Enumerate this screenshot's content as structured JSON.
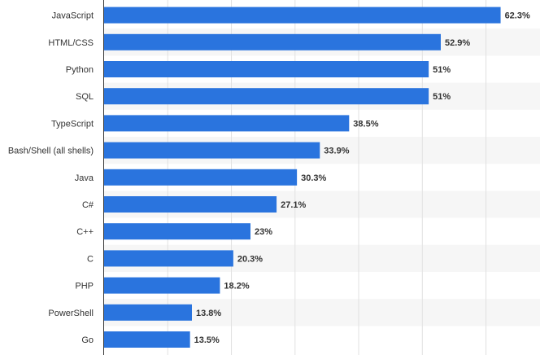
{
  "chart_data": {
    "type": "bar",
    "orientation": "horizontal",
    "categories": [
      "JavaScript",
      "HTML/CSS",
      "Python",
      "SQL",
      "TypeScript",
      "Bash/Shell (all shells)",
      "Java",
      "C#",
      "C++",
      "C",
      "PHP",
      "PowerShell",
      "Go"
    ],
    "values": [
      62.3,
      52.9,
      51,
      51,
      38.5,
      33.9,
      30.3,
      27.1,
      23,
      20.3,
      18.2,
      13.8,
      13.5
    ],
    "value_labels": [
      "62.3%",
      "52.9%",
      "51%",
      "51%",
      "38.5%",
      "33.9%",
      "30.3%",
      "27.1%",
      "23%",
      "20.3%",
      "18.2%",
      "13.8%",
      "13.5%"
    ],
    "xlim": [
      0,
      68
    ],
    "grid": true,
    "bar_color": "#2a74de",
    "alt_row_color": "#f6f6f6",
    "grid_color": "#e1e1e1",
    "axis_color": "#333333"
  }
}
